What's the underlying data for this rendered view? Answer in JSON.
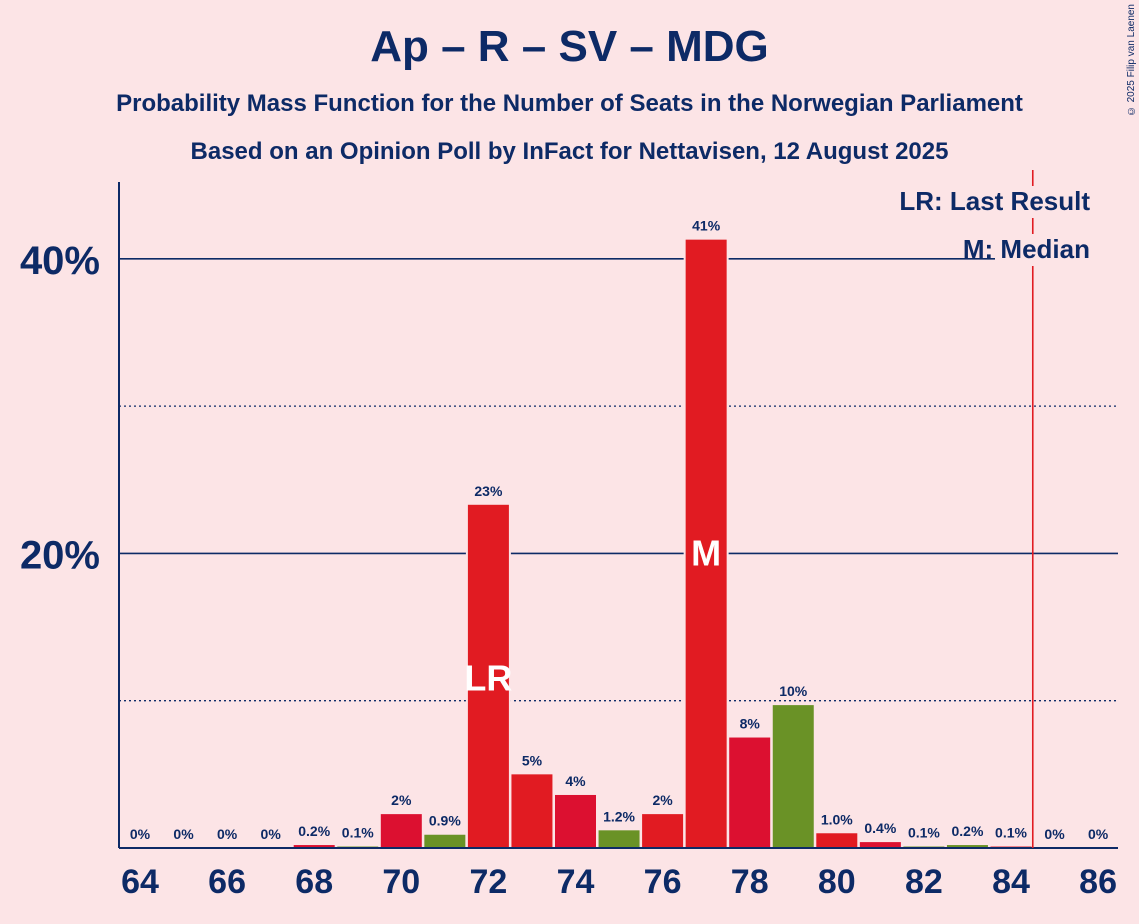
{
  "title": "Ap – R – SV – MDG",
  "subtitle_1": "Probability Mass Function for the Number of Seats in the Norwegian Parliament",
  "subtitle_2": "Based on an Opinion Poll by InFact for Nettavisen, 12 August 2025",
  "copyright": "© 2025 Filip van Laenen",
  "colors": {
    "background": "#FCE4E6",
    "text": "#0D2A66",
    "bar_red": "#E11B22",
    "bar_dark_red": "#DC1030",
    "bar_green": "#6A9226",
    "majority_line": "#E11B22"
  },
  "chart_data": {
    "type": "bar",
    "title": "Ap – R – SV – MDG",
    "xlabel": "",
    "ylabel": "",
    "ylim": [
      0,
      45
    ],
    "y_gridlines_solid": [
      20,
      40
    ],
    "y_gridlines_dotted": [
      10,
      30
    ],
    "y_tick_labels": [
      {
        "value": 20,
        "label": "20%"
      },
      {
        "value": 40,
        "label": "40%"
      }
    ],
    "x_tick_labels": [
      "64",
      "66",
      "68",
      "70",
      "72",
      "74",
      "76",
      "78",
      "80",
      "82",
      "84",
      "86"
    ],
    "categories": [
      64,
      65,
      66,
      67,
      68,
      69,
      70,
      71,
      72,
      73,
      74,
      75,
      76,
      77,
      78,
      79,
      80,
      81,
      82,
      83,
      84,
      85,
      86
    ],
    "values": [
      0,
      0,
      0,
      0,
      0.2,
      0.1,
      2.3,
      0.9,
      23.3,
      5.0,
      3.6,
      1.2,
      2.3,
      41.3,
      7.5,
      9.7,
      1.0,
      0.4,
      0.1,
      0.2,
      0.1,
      0,
      0
    ],
    "labels": [
      "0%",
      "0%",
      "0%",
      "0%",
      "0.2%",
      "0.1%",
      "2%",
      "0.9%",
      "23%",
      "5%",
      "4%",
      "1.2%",
      "2%",
      "41%",
      "8%",
      "10%",
      "1.0%",
      "0.4%",
      "0.1%",
      "0.2%",
      "0.1%",
      "0%",
      "0%"
    ],
    "bar_colors": [
      "red",
      "red",
      "red",
      "red",
      "dark_red",
      "green",
      "dark_red",
      "green",
      "red",
      "red",
      "dark_red",
      "green",
      "red",
      "red",
      "dark_red",
      "green",
      "red",
      "dark_red",
      "green",
      "green",
      "red",
      "red",
      "red"
    ],
    "last_result": {
      "seat": 72,
      "marker": "LR"
    },
    "median": {
      "seat": 77,
      "marker": "M"
    },
    "majority_threshold": 85,
    "legend": [
      "LR: Last Result",
      "M: Median"
    ],
    "legend_position": "top-right"
  }
}
